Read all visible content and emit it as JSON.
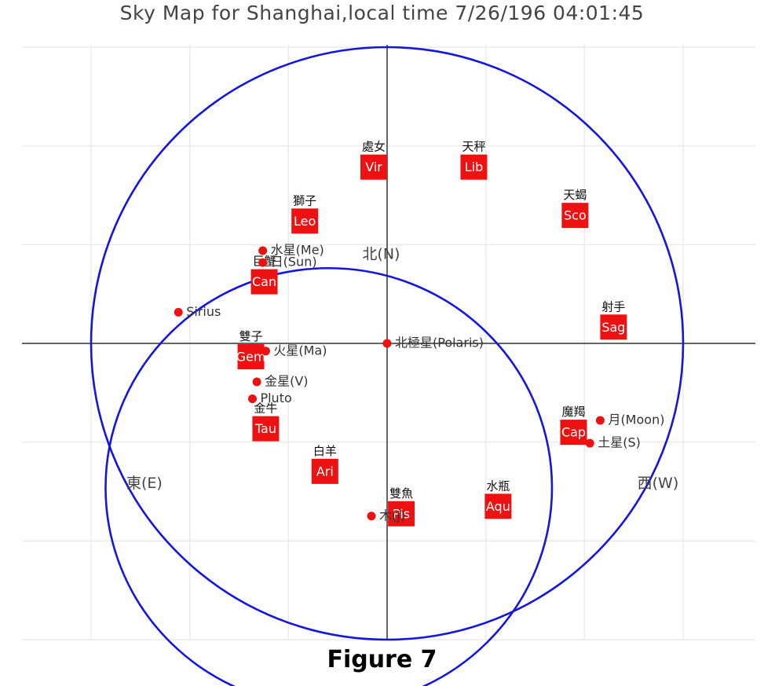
{
  "title": "Sky Map for Shanghai,local time 7/26/196 04:01:45",
  "caption": "Figure 7",
  "colors": {
    "circle": "#1515e0",
    "marker": "#ee1111",
    "label_text": "#333333",
    "axis": "#333333",
    "grid": "#ebebeb"
  },
  "chart_data": {
    "type": "scatter",
    "xlim": [
      -1.22,
      1.22
    ],
    "ylim": [
      -1.22,
      1.22
    ],
    "grid": true,
    "horizon_circle": {
      "cx": 0,
      "cy": 0,
      "r": 1
    },
    "equator_ellipse": {
      "cx": -0.197,
      "cy": -0.487,
      "rx": 0.754,
      "ry": 0.741
    },
    "directions": [
      {
        "label": "北(N)",
        "x": -0.02,
        "y": 0.3
      },
      {
        "label": "東(E)",
        "x": -0.82,
        "y": -0.474
      },
      {
        "label": "西(W)",
        "x": 0.915,
        "y": -0.474
      }
    ],
    "points": [
      {
        "label": "Sirius",
        "x": -0.705,
        "y": 0.105
      },
      {
        "label": "北極星(Polaris)",
        "x": 0.0,
        "y": 0.0
      },
      {
        "label": "水星(Me)",
        "x": -0.42,
        "y": 0.313
      },
      {
        "label": "日(Sun)",
        "x": -0.42,
        "y": 0.273
      },
      {
        "label": "火星(Ma)",
        "x": -0.41,
        "y": -0.026
      },
      {
        "label": "金星(V)",
        "x": -0.44,
        "y": -0.13
      },
      {
        "label": "Pluto",
        "x": -0.455,
        "y": -0.187
      },
      {
        "label": "木(J)",
        "x": -0.053,
        "y": -0.583
      },
      {
        "label": "月(Moon)",
        "x": 0.72,
        "y": -0.26
      },
      {
        "label": "土星(S)",
        "x": 0.685,
        "y": -0.337
      }
    ],
    "constellations": [
      {
        "name": "處女",
        "abbr": "Vir",
        "x": -0.045,
        "y": 0.595
      },
      {
        "name": "天秤",
        "abbr": "Lib",
        "x": 0.293,
        "y": 0.595
      },
      {
        "name": "獅子",
        "abbr": "Leo",
        "x": -0.278,
        "y": 0.413
      },
      {
        "name": "天蝎",
        "abbr": "Sco",
        "x": 0.635,
        "y": 0.432
      },
      {
        "name": "巨蟹",
        "abbr": "Can",
        "x": -0.415,
        "y": 0.208
      },
      {
        "name": "射手",
        "abbr": "Sag",
        "x": 0.765,
        "y": 0.055
      },
      {
        "name": "雙子",
        "abbr": "Gem",
        "x": -0.46,
        "y": -0.045
      },
      {
        "name": "金牛",
        "abbr": "Tau",
        "x": -0.41,
        "y": -0.288
      },
      {
        "name": "白羊",
        "abbr": "Ari",
        "x": -0.21,
        "y": -0.432
      },
      {
        "name": "雙魚",
        "abbr": "Pis",
        "x": 0.048,
        "y": -0.575
      },
      {
        "name": "魔羯",
        "abbr": "Cap",
        "x": 0.63,
        "y": -0.3
      },
      {
        "name": "水瓶",
        "abbr": "Aqu",
        "x": 0.375,
        "y": -0.55
      }
    ]
  }
}
